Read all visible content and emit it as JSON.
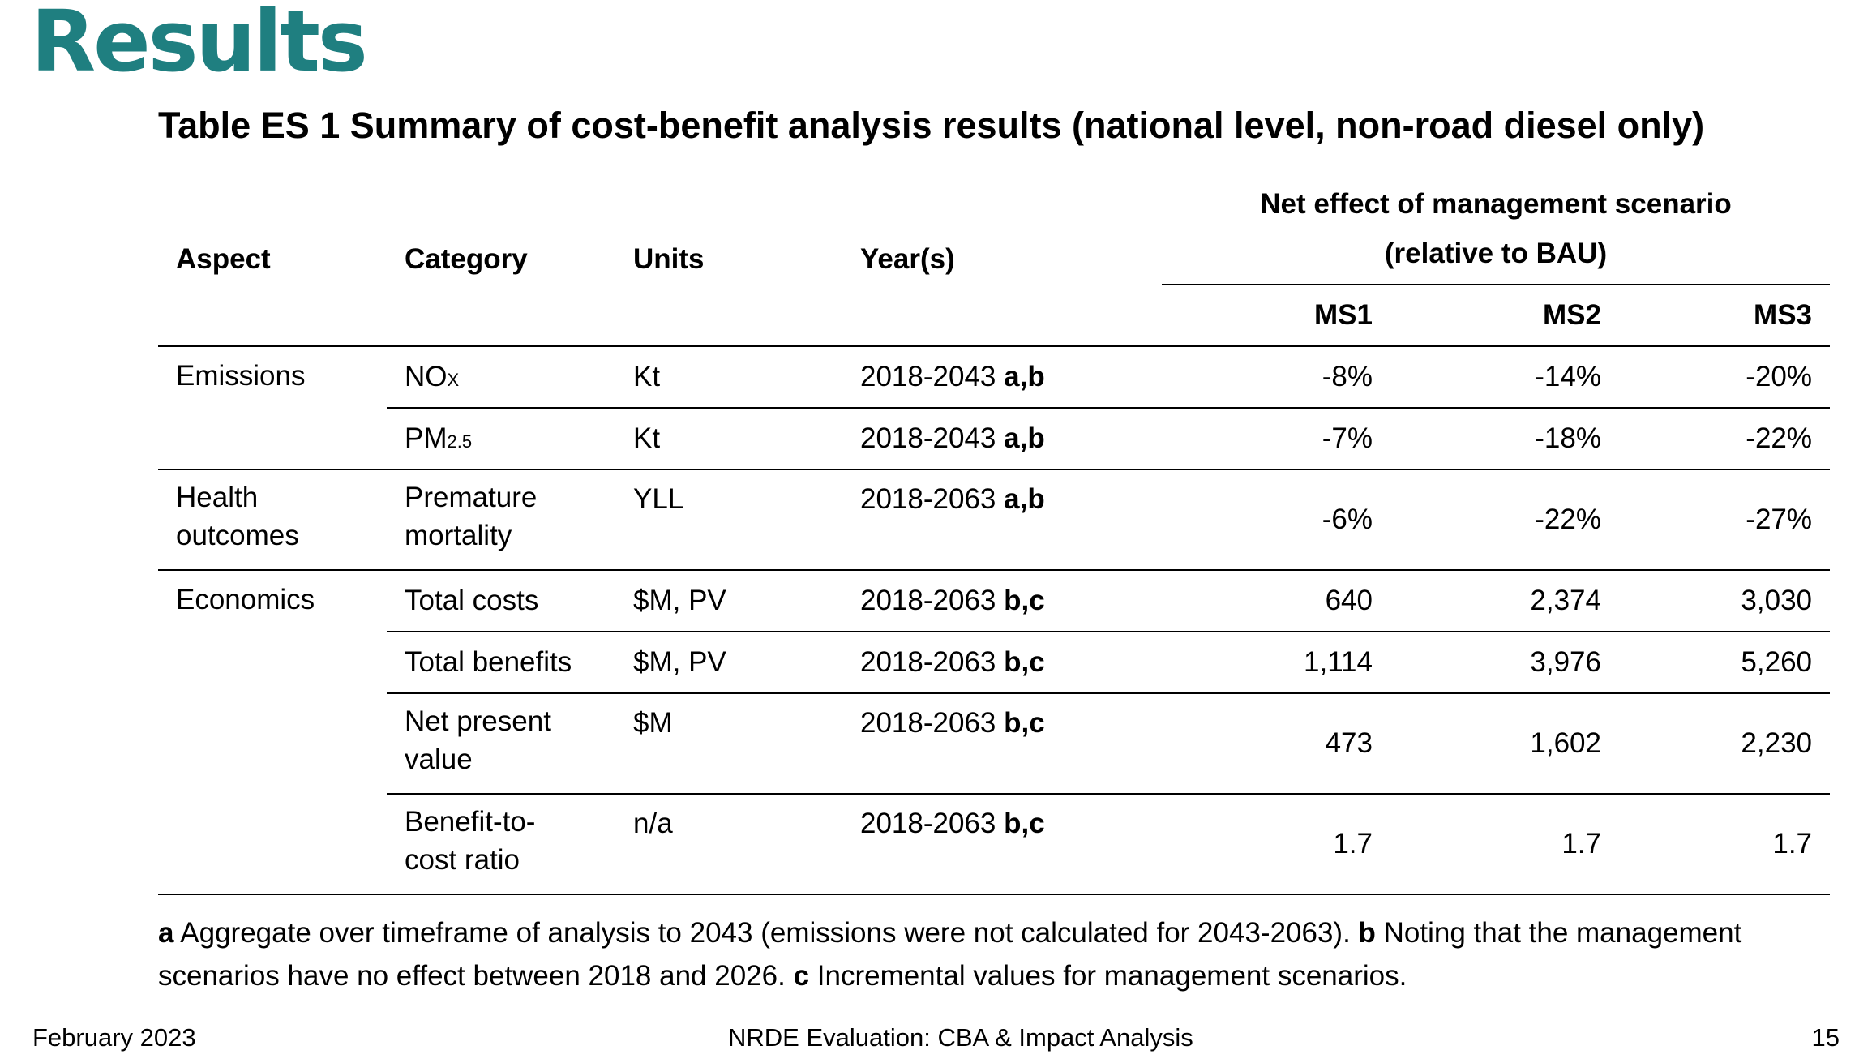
{
  "slide": {
    "title": "Results",
    "table_caption": "Table ES 1 Summary of cost-benefit analysis results (national level, non-road diesel only)"
  },
  "table": {
    "headers": {
      "aspect": "Aspect",
      "category": "Category",
      "units": "Units",
      "years": "Year(s)",
      "net_effect_line1": "Net effect of management scenario",
      "net_effect_line2": "(relative to BAU)",
      "ms1": "MS1",
      "ms2": "MS2",
      "ms3": "MS3"
    },
    "rows": [
      {
        "aspect": "Emissions",
        "category_main": "NO",
        "category_sub": "X",
        "units": "Kt",
        "years": "2018-2043",
        "notes": "a,b",
        "ms1": "-8%",
        "ms2": "-14%",
        "ms3": "-20%"
      },
      {
        "aspect": "",
        "category_main": "PM",
        "category_sub": "2.5",
        "units": "Kt",
        "years": "2018-2043",
        "notes": "a,b",
        "ms1": "-7%",
        "ms2": "-18%",
        "ms3": "-22%"
      },
      {
        "aspect_line1": "Health",
        "aspect_line2": "outcomes",
        "category_line1": "Premature",
        "category_line2": "mortality",
        "units": "YLL",
        "years": "2018-2063",
        "notes": "a,b",
        "ms1": "-6%",
        "ms2": "-22%",
        "ms3": "-27%"
      },
      {
        "aspect": "Economics",
        "category": "Total costs",
        "units": "$M, PV",
        "years": "2018-2063",
        "notes": "b,c",
        "ms1": "640",
        "ms2": "2,374",
        "ms3": "3,030"
      },
      {
        "aspect": "",
        "category": "Total benefits",
        "units": "$M, PV",
        "years": "2018-2063",
        "notes": "b,c",
        "ms1": "1,114",
        "ms2": "3,976",
        "ms3": "5,260"
      },
      {
        "aspect": "",
        "category_line1": "Net present",
        "category_line2": "value",
        "units": "$M",
        "years": "2018-2063",
        "notes": "b,c",
        "ms1": "473",
        "ms2": "1,602",
        "ms3": "2,230"
      },
      {
        "aspect": "",
        "category_line1": "Benefit-to-",
        "category_line2": "cost ratio",
        "units": "n/a",
        "years": "2018-2063",
        "notes": "b,c",
        "ms1": "1.7",
        "ms2": "1.7",
        "ms3": "1.7"
      }
    ]
  },
  "footnote": {
    "a_marker": "a",
    "a_text": " Aggregate over timeframe of analysis to 2043 (emissions were not calculated for 2043-2063). ",
    "b_marker": "b",
    "b_text": " Noting that the management scenarios have no effect between 2018 and 2026. ",
    "c_marker": "c",
    "c_text": " Incremental values for management scenarios."
  },
  "footer": {
    "date": "February 2023",
    "center": "NRDE Evaluation: CBA & Impact Analysis",
    "page": "15"
  },
  "colors": {
    "title": "#1f7f80",
    "text": "#000000",
    "background": "#ffffff"
  }
}
